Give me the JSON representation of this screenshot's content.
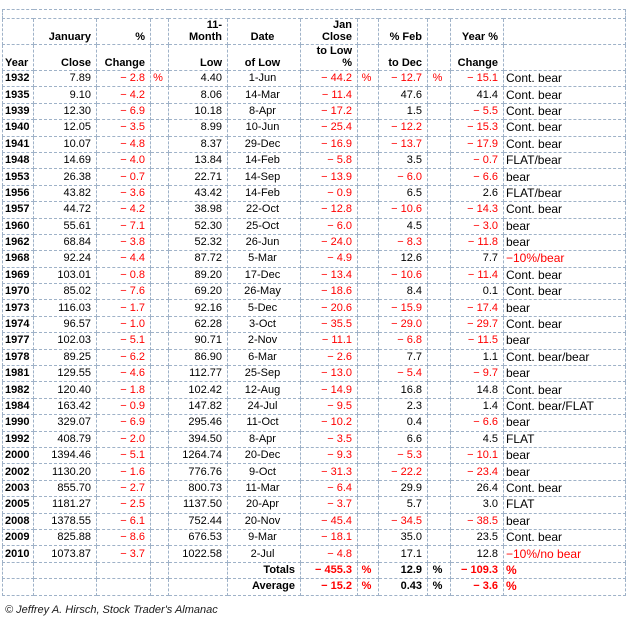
{
  "colors": {
    "negative_value": "#ff0000",
    "text": "#000000",
    "gridline": "#9fb2c8",
    "background": "#ffffff"
  },
  "chart_data": {
    "type": "table",
    "title": "",
    "grid": "dashed",
    "header": {
      "row1": [
        "",
        "January",
        "%",
        "",
        "11-\nMonth",
        "Date",
        "Jan\nClose",
        "",
        "% Feb",
        "",
        "Year %",
        ""
      ],
      "row2": [
        "Year",
        "Close",
        "Change",
        "",
        "Low",
        "of Low",
        "to Low\n%",
        "",
        "to Dec",
        "",
        "Change",
        ""
      ]
    },
    "rows": [
      [
        "1932",
        "7.89",
        "− 2.8",
        "%",
        "4.40",
        "1-Jun",
        "− 44.2",
        "%",
        "− 12.7",
        "%",
        "− 15.1",
        "Cont. bear"
      ],
      [
        "1935",
        "9.10",
        "− 4.2",
        "",
        "8.06",
        "14-Mar",
        "− 11.4",
        "",
        "47.6",
        "",
        "41.4",
        "Cont. bear"
      ],
      [
        "1939",
        "12.30",
        "− 6.9",
        "",
        "10.18",
        "8-Apr",
        "− 17.2",
        "",
        "1.5",
        "",
        "− 5.5",
        "Cont. bear"
      ],
      [
        "1940",
        "12.05",
        "− 3.5",
        "",
        "8.99",
        "10-Jun",
        "− 25.4",
        "",
        "− 12.2",
        "",
        "− 15.3",
        "Cont. bear"
      ],
      [
        "1941",
        "10.07",
        "− 4.8",
        "",
        "8.37",
        "29-Dec",
        "− 16.9",
        "",
        "− 13.7",
        "",
        "− 17.9",
        "Cont. bear"
      ],
      [
        "1948",
        "14.69",
        "− 4.0",
        "",
        "13.84",
        "14-Feb",
        "− 5.8",
        "",
        "3.5",
        "",
        "− 0.7",
        "FLAT/bear"
      ],
      [
        "1953",
        "26.38",
        "− 0.7",
        "",
        "22.71",
        "14-Sep",
        "− 13.9",
        "",
        "− 6.0",
        "",
        "− 6.6",
        "bear"
      ],
      [
        "1956",
        "43.82",
        "− 3.6",
        "",
        "43.42",
        "14-Feb",
        "− 0.9",
        "",
        "6.5",
        "",
        "2.6",
        "FLAT/bear"
      ],
      [
        "1957",
        "44.72",
        "− 4.2",
        "",
        "38.98",
        "22-Oct",
        "− 12.8",
        "",
        "− 10.6",
        "",
        "− 14.3",
        "Cont. bear"
      ],
      [
        "1960",
        "55.61",
        "− 7.1",
        "",
        "52.30",
        "25-Oct",
        "− 6.0",
        "",
        "4.5",
        "",
        "− 3.0",
        "bear"
      ],
      [
        "1962",
        "68.84",
        "− 3.8",
        "",
        "52.32",
        "26-Jun",
        "− 24.0",
        "",
        "− 8.3",
        "",
        "− 11.8",
        "bear"
      ],
      [
        "1968",
        "92.24",
        "− 4.4",
        "",
        "87.72",
        "5-Mar",
        "− 4.9",
        "",
        "12.6",
        "",
        "7.7",
        "−10%/bear"
      ],
      [
        "1969",
        "103.01",
        "− 0.8",
        "",
        "89.20",
        "17-Dec",
        "− 13.4",
        "",
        "− 10.6",
        "",
        "− 11.4",
        "Cont. bear"
      ],
      [
        "1970",
        "85.02",
        "− 7.6",
        "",
        "69.20",
        "26-May",
        "− 18.6",
        "",
        "8.4",
        "",
        "0.1",
        "Cont. bear"
      ],
      [
        "1973",
        "116.03",
        "− 1.7",
        "",
        "92.16",
        "5-Dec",
        "− 20.6",
        "",
        "− 15.9",
        "",
        "− 17.4",
        "bear"
      ],
      [
        "1974",
        "96.57",
        "− 1.0",
        "",
        "62.28",
        "3-Oct",
        "− 35.5",
        "",
        "− 29.0",
        "",
        "− 29.7",
        "Cont. bear"
      ],
      [
        "1977",
        "102.03",
        "− 5.1",
        "",
        "90.71",
        "2-Nov",
        "− 11.1",
        "",
        "− 6.8",
        "",
        "− 11.5",
        "bear"
      ],
      [
        "1978",
        "89.25",
        "− 6.2",
        "",
        "86.90",
        "6-Mar",
        "− 2.6",
        "",
        "7.7",
        "",
        "1.1",
        "Cont. bear/bear"
      ],
      [
        "1981",
        "129.55",
        "− 4.6",
        "",
        "112.77",
        "25-Sep",
        "− 13.0",
        "",
        "− 5.4",
        "",
        "− 9.7",
        "bear"
      ],
      [
        "1982",
        "120.40",
        "− 1.8",
        "",
        "102.42",
        "12-Aug",
        "− 14.9",
        "",
        "16.8",
        "",
        "14.8",
        "Cont. bear"
      ],
      [
        "1984",
        "163.42",
        "− 0.9",
        "",
        "147.82",
        "24-Jul",
        "− 9.5",
        "",
        "2.3",
        "",
        "1.4",
        "Cont. bear/FLAT"
      ],
      [
        "1990",
        "329.07",
        "− 6.9",
        "",
        "295.46",
        "11-Oct",
        "− 10.2",
        "",
        "0.4",
        "",
        "− 6.6",
        "bear"
      ],
      [
        "1992",
        "408.79",
        "− 2.0",
        "",
        "394.50",
        "8-Apr",
        "− 3.5",
        "",
        "6.6",
        "",
        "4.5",
        "FLAT"
      ],
      [
        "2000",
        "1394.46",
        "− 5.1",
        "",
        "1264.74",
        "20-Dec",
        "− 9.3",
        "",
        "− 5.3",
        "",
        "− 10.1",
        "bear"
      ],
      [
        "2002",
        "1130.20",
        "− 1.6",
        "",
        "776.76",
        "9-Oct",
        "− 31.3",
        "",
        "− 22.2",
        "",
        "− 23.4",
        "bear"
      ],
      [
        "2003",
        "855.70",
        "− 2.7",
        "",
        "800.73",
        "11-Mar",
        "− 6.4",
        "",
        "29.9",
        "",
        "26.4",
        "Cont. bear"
      ],
      [
        "2005",
        "1181.27",
        "− 2.5",
        "",
        "1137.50",
        "20-Apr",
        "− 3.7",
        "",
        "5.7",
        "",
        "3.0",
        "FLAT"
      ],
      [
        "2008",
        "1378.55",
        "− 6.1",
        "",
        "752.44",
        "20-Nov",
        "− 45.4",
        "",
        "− 34.5",
        "",
        "− 38.5",
        "bear"
      ],
      [
        "2009",
        "825.88",
        "− 8.6",
        "",
        "676.53",
        "9-Mar",
        "− 18.1",
        "",
        "35.0",
        "",
        "23.5",
        "Cont. bear"
      ],
      [
        "2010",
        "1073.87",
        "− 3.7",
        "",
        "1022.58",
        "2-Jul",
        "− 4.8",
        "",
        "17.1",
        "",
        "12.8",
        "−10%/no bear"
      ]
    ],
    "totals_row": [
      "",
      "",
      "",
      "",
      "",
      "Totals",
      "− 455.3",
      "%",
      "12.9",
      "%",
      "− 109.3",
      "%"
    ],
    "average_row": [
      "",
      "",
      "",
      "",
      "",
      "Average",
      "− 15.2",
      "%",
      "0.43",
      "%",
      "− 3.6",
      "%"
    ]
  },
  "footer": {
    "credit": "© Jeffrey A. Hirsch, Stock Trader's Almanac"
  }
}
